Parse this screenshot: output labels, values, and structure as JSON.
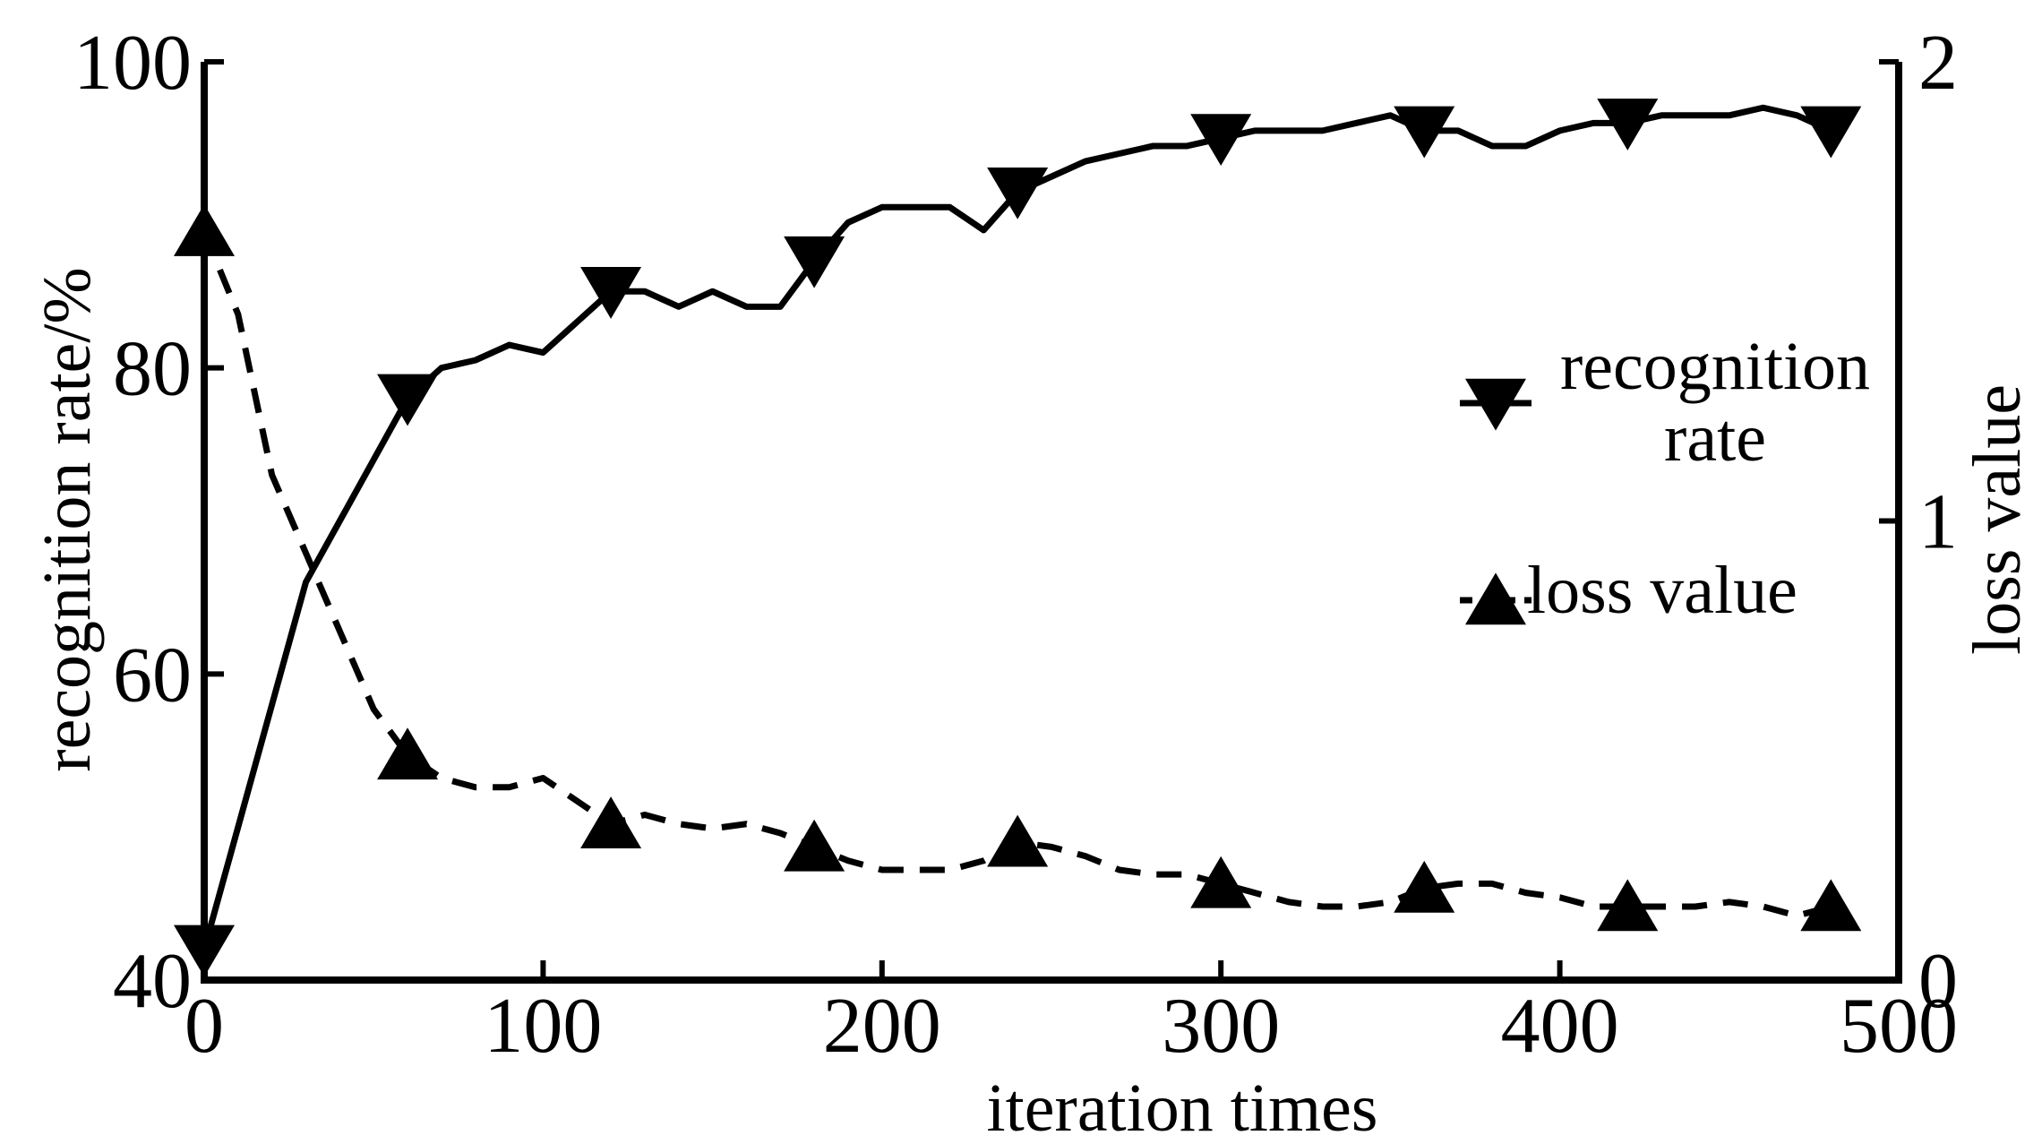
{
  "chart_data": {
    "type": "line",
    "xlabel": "iteration times",
    "ylabel": "recognition rate/%",
    "y2label": "loss value",
    "x": [
      0,
      10,
      20,
      30,
      40,
      50,
      60,
      70,
      80,
      90,
      100,
      110,
      120,
      130,
      140,
      150,
      160,
      170,
      180,
      190,
      200,
      210,
      220,
      230,
      240,
      250,
      260,
      270,
      280,
      290,
      300,
      310,
      320,
      330,
      340,
      350,
      360,
      370,
      380,
      390,
      400,
      410,
      420,
      430,
      440,
      450,
      460,
      470,
      480
    ],
    "series": [
      {
        "name": "recognition rate",
        "color": "#000000",
        "dash": "solid",
        "marker": "triangle-down",
        "markevery": 6,
        "values": [
          42,
          50,
          58,
          66,
          70,
          74,
          78,
          80,
          80.5,
          81.5,
          81,
          83,
          85,
          85,
          84,
          85,
          84,
          84,
          87,
          89.5,
          90.5,
          90.5,
          90.5,
          89,
          91.5,
          92.5,
          93.5,
          94,
          94.5,
          94.5,
          95,
          95.5,
          95.5,
          95.5,
          96,
          96.5,
          95.5,
          95.5,
          94.5,
          94.5,
          95.5,
          96,
          96,
          96.5,
          96.5,
          96.5,
          97,
          96.5,
          95.5
        ]
      },
      {
        "name": "loss value",
        "color": "#000000",
        "dash": "dashed",
        "marker": "triangle-up",
        "markevery": 6,
        "axis": "y2",
        "values": [
          1.63,
          1.45,
          1.1,
          0.93,
          0.76,
          0.59,
          0.49,
          0.44,
          0.42,
          0.42,
          0.44,
          0.39,
          0.34,
          0.36,
          0.34,
          0.33,
          0.34,
          0.32,
          0.29,
          0.26,
          0.24,
          0.24,
          0.24,
          0.26,
          0.3,
          0.29,
          0.27,
          0.24,
          0.23,
          0.23,
          0.21,
          0.19,
          0.17,
          0.16,
          0.16,
          0.17,
          0.2,
          0.21,
          0.21,
          0.19,
          0.18,
          0.16,
          0.16,
          0.16,
          0.16,
          0.17,
          0.16,
          0.14,
          0.16
        ]
      }
    ],
    "xlim": [
      0,
      500
    ],
    "xticks": [
      0,
      100,
      200,
      300,
      400,
      500
    ],
    "ylim": [
      40,
      100
    ],
    "yticks": [
      40,
      60,
      80,
      100
    ],
    "y2lim": [
      0,
      2
    ],
    "y2ticks": [
      0,
      1,
      2
    ],
    "grid": false,
    "legend": "right"
  }
}
